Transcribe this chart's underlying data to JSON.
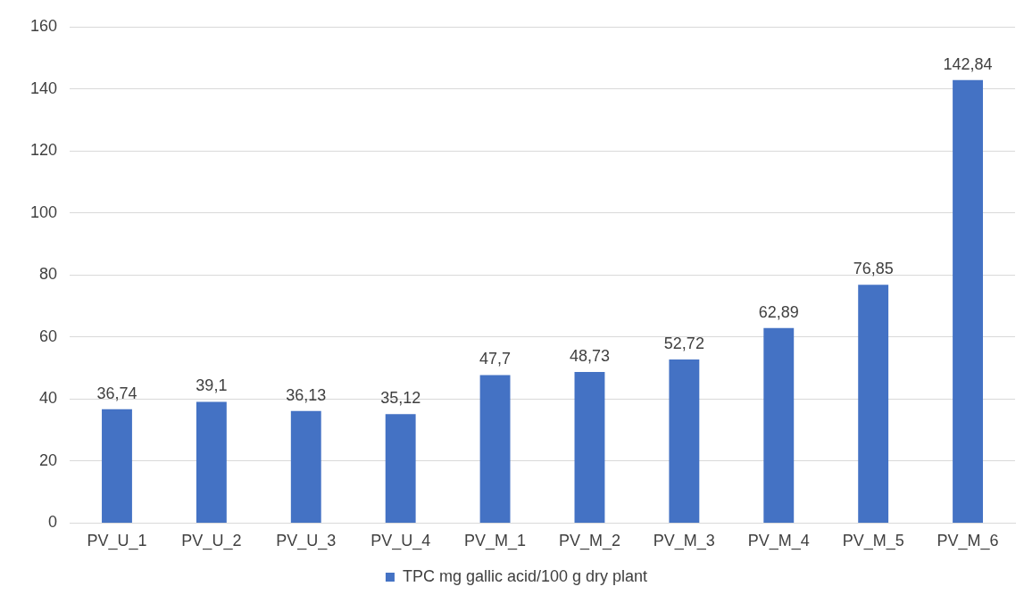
{
  "chart_data": {
    "type": "bar",
    "categories": [
      "PV_U_1",
      "PV_U_2",
      "PV_U_3",
      "PV_U_4",
      "PV_M_1",
      "PV_M_2",
      "PV_M_3",
      "PV_M_4",
      "PV_M_5",
      "PV_M_6"
    ],
    "series": [
      {
        "name": "TPC mg gallic acid/100 g dry plant",
        "color": "#4472c4",
        "values": [
          36.74,
          39.1,
          36.13,
          35.12,
          47.7,
          48.73,
          52.72,
          62.89,
          76.85,
          142.84
        ],
        "value_labels": [
          "36,74",
          "39,1",
          "36,13",
          "35,12",
          "47,7",
          "48,73",
          "52,72",
          "62,89",
          "76,85",
          "142,84"
        ]
      }
    ],
    "ylim": [
      0,
      160
    ],
    "yticks": [
      0,
      20,
      40,
      60,
      80,
      100,
      120,
      140,
      160
    ],
    "grid": "y",
    "legend": "bottom"
  }
}
